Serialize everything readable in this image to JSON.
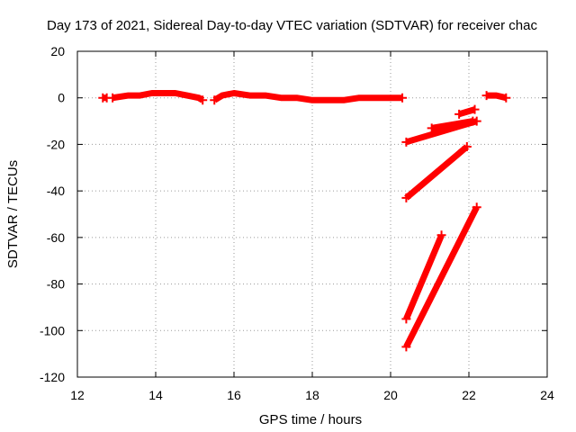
{
  "chart_data": {
    "type": "scatter",
    "title": "Day 173 of 2021, Sidereal Day-to-day VTEC variation (SDTVAR) for receiver chac",
    "xlabel": "GPS time / hours",
    "ylabel": "SDTVAR / TECUs",
    "xlim": [
      12,
      24
    ],
    "ylim": [
      -120,
      20
    ],
    "xticks": [
      12,
      14,
      16,
      18,
      20,
      22,
      24
    ],
    "yticks": [
      20,
      0,
      -20,
      -40,
      -60,
      -80,
      -100,
      -120
    ],
    "grid": true,
    "grid_style": "dotted",
    "marker_color": "#ff0000",
    "series": [
      {
        "segments": [
          {
            "x": [
              12.65,
              12.75
            ],
            "y": [
              0,
              0
            ]
          },
          {
            "x": [
              12.9,
              13.3,
              13.6,
              13.9,
              14.2,
              14.5,
              14.8,
              15.1,
              15.2
            ],
            "y": [
              0,
              1,
              1,
              2,
              2,
              2,
              1,
              0,
              -1
            ]
          },
          {
            "x": [
              15.5,
              15.7,
              16.0,
              16.4,
              16.8,
              17.2,
              17.6,
              18.0,
              18.4,
              18.8,
              19.2,
              19.6,
              20.0,
              20.3
            ],
            "y": [
              -1,
              1,
              2,
              1,
              1,
              0,
              0,
              -1,
              -1,
              -1,
              0,
              0,
              0,
              0
            ]
          },
          {
            "x": [
              22.45,
              22.7,
              22.95
            ],
            "y": [
              1,
              1,
              0
            ]
          },
          {
            "x": [
              20.4,
              22.2
            ],
            "y": [
              -19,
              -10
            ]
          },
          {
            "x": [
              21.05,
              22.1
            ],
            "y": [
              -13,
              -10
            ]
          },
          {
            "x": [
              21.75,
              22.15
            ],
            "y": [
              -7,
              -5
            ]
          },
          {
            "x": [
              20.4,
              21.95
            ],
            "y": [
              -43,
              -21
            ]
          },
          {
            "x": [
              20.4,
              21.3
            ],
            "y": [
              -95,
              -59
            ]
          },
          {
            "x": [
              20.4,
              22.2
            ],
            "y": [
              -107,
              -47
            ]
          }
        ]
      }
    ]
  }
}
